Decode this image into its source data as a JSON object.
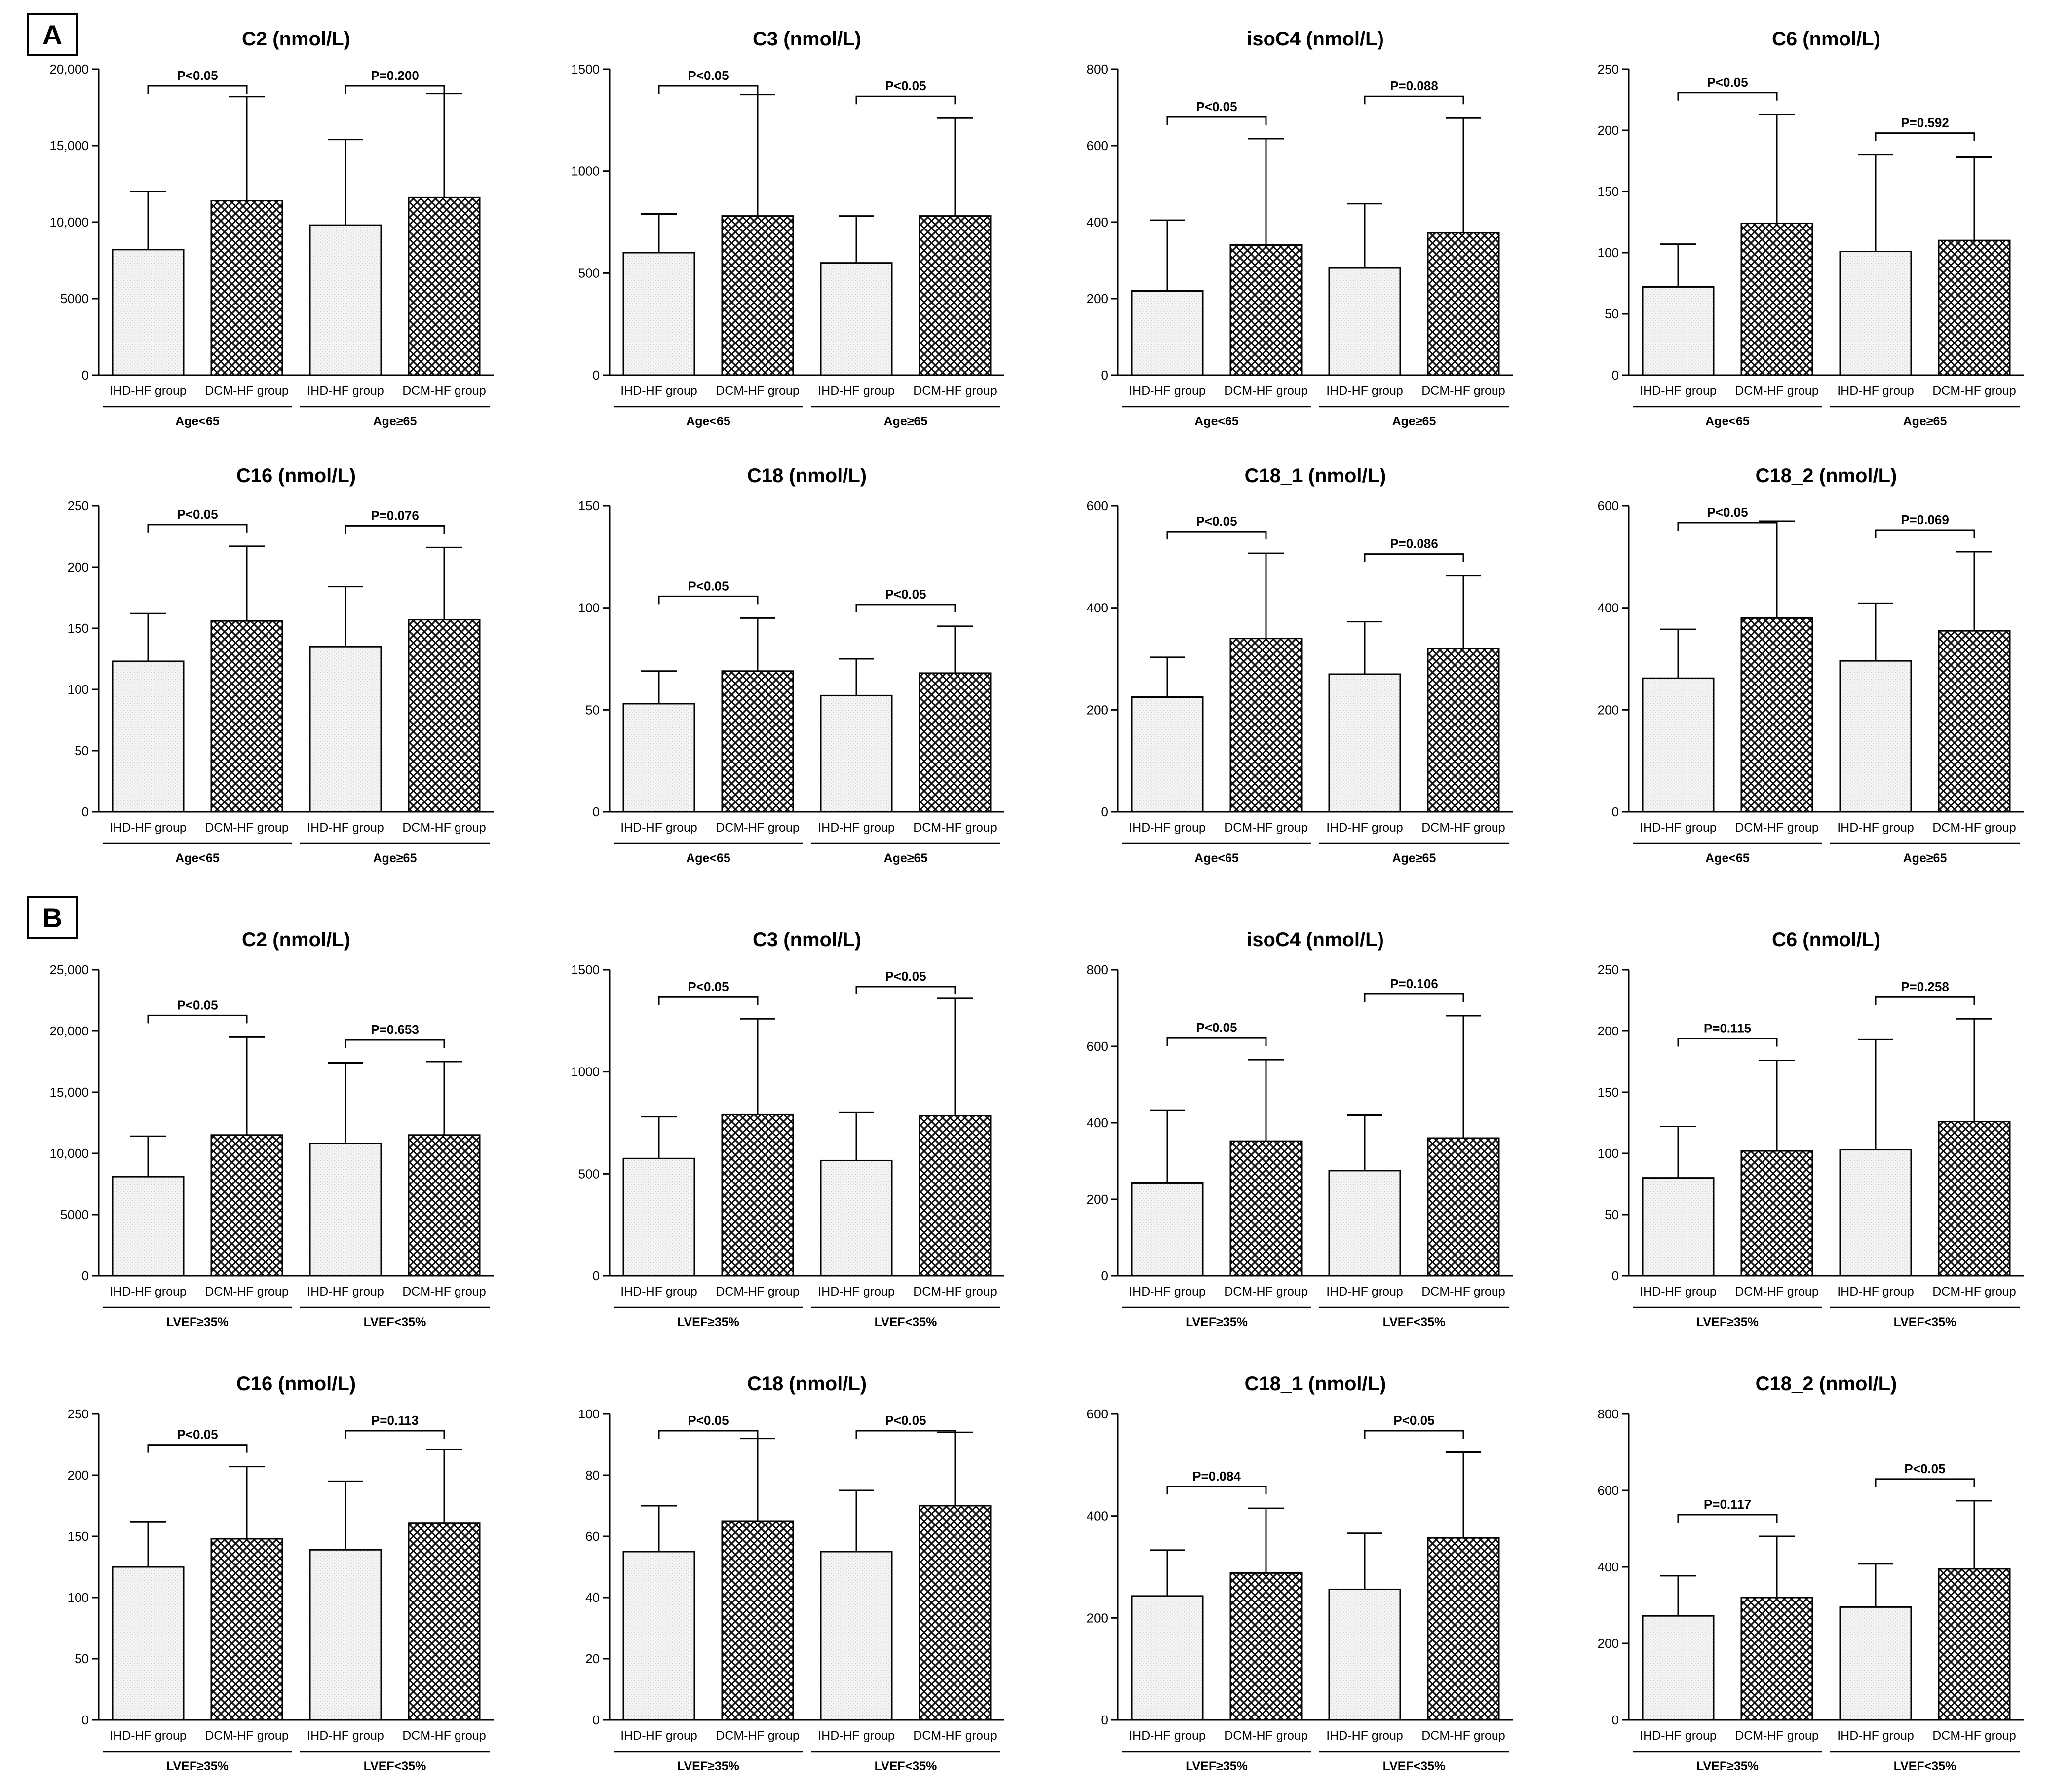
{
  "panel_labels": [
    "A",
    "B"
  ],
  "group_labels": [
    "IHD-HF group",
    "DCM-HF group"
  ],
  "colors": {
    "ink": "#000000",
    "ihd_fill": "#f3f3f3",
    "dcm_fill": "#6f6f6f",
    "background": "#ffffff"
  },
  "chart_data": [
    {
      "panel": "A",
      "type": "bar",
      "title": "C2 (nmol/L)",
      "subgroups": [
        "Age<65",
        "Age≥65"
      ],
      "categories": [
        "IHD-HF group",
        "DCM-HF group",
        "IHD-HF group",
        "DCM-HF group"
      ],
      "values": [
        8200,
        11400,
        9800,
        11600
      ],
      "errors": [
        3800,
        6800,
        5600,
        6800
      ],
      "ylim": [
        0,
        20000
      ],
      "yticks": [
        "0",
        "5000",
        "10,000",
        "15,000",
        "20,000"
      ],
      "pvalues": [
        "P<0.05",
        "P=0.200"
      ]
    },
    {
      "panel": "A",
      "type": "bar",
      "title": "C3 (nmol/L)",
      "subgroups": [
        "Age<65",
        "Age≥65"
      ],
      "categories": [
        "IHD-HF group",
        "DCM-HF group",
        "IHD-HF group",
        "DCM-HF group"
      ],
      "values": [
        600,
        780,
        550,
        780
      ],
      "errors": [
        190,
        595,
        230,
        480
      ],
      "ylim": [
        0,
        1500
      ],
      "yticks": [
        "0",
        "500",
        "1000",
        "1500"
      ],
      "pvalues": [
        "P<0.05",
        "P<0.05"
      ]
    },
    {
      "panel": "A",
      "type": "bar",
      "title": "isoC4 (nmol/L)",
      "subgroups": [
        "Age<65",
        "Age≥65"
      ],
      "categories": [
        "IHD-HF group",
        "DCM-HF group",
        "IHD-HF group",
        "DCM-HF group"
      ],
      "values": [
        220,
        340,
        280,
        372
      ],
      "errors": [
        185,
        278,
        168,
        300
      ],
      "ylim": [
        0,
        800
      ],
      "yticks": [
        "0",
        "200",
        "400",
        "600",
        "800"
      ],
      "pvalues": [
        "P<0.05",
        "P=0.088"
      ]
    },
    {
      "panel": "A",
      "type": "bar",
      "title": "C6 (nmol/L)",
      "subgroups": [
        "Age<65",
        "Age≥65"
      ],
      "categories": [
        "IHD-HF group",
        "DCM-HF group",
        "IHD-HF group",
        "DCM-HF group"
      ],
      "values": [
        72,
        124,
        101,
        110
      ],
      "errors": [
        35,
        89,
        79,
        68
      ],
      "ylim": [
        0,
        250
      ],
      "yticks": [
        "0",
        "50",
        "100",
        "150",
        "200",
        "250"
      ],
      "pvalues": [
        "P<0.05",
        "P=0.592"
      ]
    },
    {
      "panel": "A",
      "type": "bar",
      "title": "C16 (nmol/L)",
      "subgroups": [
        "Age<65",
        "Age≥65"
      ],
      "categories": [
        "IHD-HF group",
        "DCM-HF group",
        "IHD-HF group",
        "DCM-HF group"
      ],
      "values": [
        123,
        156,
        135,
        157
      ],
      "errors": [
        39,
        61,
        49,
        59
      ],
      "ylim": [
        0,
        250
      ],
      "yticks": [
        "0",
        "50",
        "100",
        "150",
        "200",
        "250"
      ],
      "pvalues": [
        "P<0.05",
        "P=0.076"
      ]
    },
    {
      "panel": "A",
      "type": "bar",
      "title": "C18 (nmol/L)",
      "subgroups": [
        "Age<65",
        "Age≥65"
      ],
      "categories": [
        "IHD-HF group",
        "DCM-HF group",
        "IHD-HF group",
        "DCM-HF group"
      ],
      "values": [
        53,
        69,
        57,
        68
      ],
      "errors": [
        16,
        26,
        18,
        23
      ],
      "ylim": [
        0,
        150
      ],
      "yticks": [
        "0",
        "50",
        "100",
        "150"
      ],
      "pvalues": [
        "P<0.05",
        "P<0.05"
      ]
    },
    {
      "panel": "A",
      "type": "bar",
      "title": "C18_1 (nmol/L)",
      "subgroups": [
        "Age<65",
        "Age≥65"
      ],
      "categories": [
        "IHD-HF group",
        "DCM-HF group",
        "IHD-HF group",
        "DCM-HF group"
      ],
      "values": [
        225,
        340,
        270,
        320
      ],
      "errors": [
        78,
        167,
        103,
        143
      ],
      "ylim": [
        0,
        600
      ],
      "yticks": [
        "0",
        "200",
        "400",
        "600"
      ],
      "pvalues": [
        "P<0.05",
        "P=0.086"
      ]
    },
    {
      "panel": "A",
      "type": "bar",
      "title": "C18_2 (nmol/L)",
      "subgroups": [
        "Age<65",
        "Age≥65"
      ],
      "categories": [
        "IHD-HF group",
        "DCM-HF group",
        "IHD-HF group",
        "DCM-HF group"
      ],
      "values": [
        262,
        380,
        296,
        355
      ],
      "errors": [
        96,
        190,
        113,
        155
      ],
      "ylim": [
        0,
        600
      ],
      "yticks": [
        "0",
        "200",
        "400",
        "600"
      ],
      "pvalues": [
        "P<0.05",
        "P=0.069"
      ]
    },
    {
      "panel": "B",
      "type": "bar",
      "title": "C2 (nmol/L)",
      "subgroups": [
        "LVEF≥35%",
        "LVEF<35%"
      ],
      "categories": [
        "IHD-HF group",
        "DCM-HF group",
        "IHD-HF group",
        "DCM-HF group"
      ],
      "values": [
        8100,
        11500,
        10800,
        11500
      ],
      "errors": [
        3300,
        8000,
        6600,
        6000
      ],
      "ylim": [
        0,
        25000
      ],
      "yticks": [
        "0",
        "5000",
        "10,000",
        "15,000",
        "20,000",
        "25,000"
      ],
      "pvalues": [
        "P<0.05",
        "P=0.653"
      ]
    },
    {
      "panel": "B",
      "type": "bar",
      "title": "C3 (nmol/L)",
      "subgroups": [
        "LVEF≥35%",
        "LVEF<35%"
      ],
      "categories": [
        "IHD-HF group",
        "DCM-HF group",
        "IHD-HF group",
        "DCM-HF group"
      ],
      "values": [
        575,
        790,
        565,
        785
      ],
      "errors": [
        205,
        470,
        235,
        575
      ],
      "ylim": [
        0,
        1500
      ],
      "yticks": [
        "0",
        "500",
        "1000",
        "1500"
      ],
      "pvalues": [
        "P<0.05",
        "P<0.05"
      ]
    },
    {
      "panel": "B",
      "type": "bar",
      "title": "isoC4 (nmol/L)",
      "subgroups": [
        "LVEF≥35%",
        "LVEF<35%"
      ],
      "categories": [
        "IHD-HF group",
        "DCM-HF group",
        "IHD-HF group",
        "DCM-HF group"
      ],
      "values": [
        242,
        352,
        275,
        360
      ],
      "errors": [
        190,
        213,
        145,
        320
      ],
      "ylim": [
        0,
        800
      ],
      "yticks": [
        "0",
        "200",
        "400",
        "600",
        "800"
      ],
      "pvalues": [
        "P<0.05",
        "P=0.106"
      ]
    },
    {
      "panel": "B",
      "type": "bar",
      "title": "C6 (nmol/L)",
      "subgroups": [
        "LVEF≥35%",
        "LVEF<35%"
      ],
      "categories": [
        "IHD-HF group",
        "DCM-HF group",
        "IHD-HF group",
        "DCM-HF group"
      ],
      "values": [
        80,
        102,
        103,
        126
      ],
      "errors": [
        42,
        74,
        90,
        84
      ],
      "ylim": [
        0,
        250
      ],
      "yticks": [
        "0",
        "50",
        "100",
        "150",
        "200",
        "250"
      ],
      "pvalues": [
        "P=0.115",
        "P=0.258"
      ]
    },
    {
      "panel": "B",
      "type": "bar",
      "title": "C16 (nmol/L)",
      "subgroups": [
        "LVEF≥35%",
        "LVEF<35%"
      ],
      "categories": [
        "IHD-HF group",
        "DCM-HF group",
        "IHD-HF group",
        "DCM-HF group"
      ],
      "values": [
        125,
        148,
        139,
        161
      ],
      "errors": [
        37,
        59,
        56,
        60
      ],
      "ylim": [
        0,
        250
      ],
      "yticks": [
        "0",
        "50",
        "100",
        "150",
        "200",
        "250"
      ],
      "pvalues": [
        "P<0.05",
        "P=0.113"
      ]
    },
    {
      "panel": "B",
      "type": "bar",
      "title": "C18 (nmol/L)",
      "subgroups": [
        "LVEF≥35%",
        "LVEF<35%"
      ],
      "categories": [
        "IHD-HF group",
        "DCM-HF group",
        "IHD-HF group",
        "DCM-HF group"
      ],
      "values": [
        55,
        65,
        55,
        70
      ],
      "errors": [
        15,
        27,
        20,
        24
      ],
      "ylim": [
        0,
        100
      ],
      "yticks": [
        "0",
        "20",
        "40",
        "60",
        "80",
        "100"
      ],
      "pvalues": [
        "P<0.05",
        "P<0.05"
      ]
    },
    {
      "panel": "B",
      "type": "bar",
      "title": "C18_1 (nmol/L)",
      "subgroups": [
        "LVEF≥35%",
        "LVEF<35%"
      ],
      "categories": [
        "IHD-HF group",
        "DCM-HF group",
        "IHD-HF group",
        "DCM-HF group"
      ],
      "values": [
        243,
        288,
        256,
        357
      ],
      "errors": [
        90,
        127,
        110,
        168
      ],
      "ylim": [
        0,
        600
      ],
      "yticks": [
        "0",
        "200",
        "400",
        "600"
      ],
      "pvalues": [
        "P=0.084",
        "P<0.05"
      ]
    },
    {
      "panel": "B",
      "type": "bar",
      "title": "C18_2 (nmol/L)",
      "subgroups": [
        "LVEF≥35%",
        "LVEF<35%"
      ],
      "categories": [
        "IHD-HF group",
        "DCM-HF group",
        "IHD-HF group",
        "DCM-HF group"
      ],
      "values": [
        272,
        320,
        295,
        395
      ],
      "errors": [
        105,
        160,
        113,
        178
      ],
      "ylim": [
        0,
        800
      ],
      "yticks": [
        "0",
        "200",
        "400",
        "600",
        "800"
      ],
      "pvalues": [
        "P=0.117",
        "P<0.05"
      ]
    }
  ]
}
